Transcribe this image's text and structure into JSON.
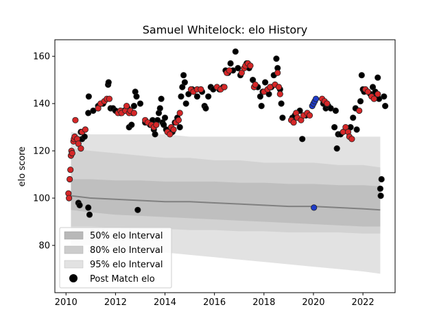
{
  "chart_data": {
    "type": "scatter",
    "title": "Samuel Whitelock: elo History",
    "xlabel": "",
    "ylabel": "elo score",
    "xlim": [
      2009.55,
      2023.3
    ],
    "ylim": [
      60,
      167
    ],
    "xticks": [
      2010,
      2012,
      2014,
      2016,
      2018,
      2020,
      2022
    ],
    "yticks": [
      80,
      100,
      120,
      140,
      160
    ],
    "legend_position": "lower-left",
    "legend": [
      "50% elo Interval",
      "80% elo Interval",
      "95% elo Interval",
      "Post Match elo"
    ],
    "colors": {
      "band95": "#e2e2e2",
      "band80": "#cccccc",
      "band50": "#b8b8b8",
      "median": "#808080",
      "points_black": "#000000",
      "points_red": "#d62728",
      "points_blue": "#1f3cc8"
    },
    "bands": {
      "x": [
        2010.2,
        2011.0,
        2012.0,
        2013.0,
        2014.0,
        2015.0,
        2016.0,
        2017.0,
        2018.0,
        2019.0,
        2020.0,
        2021.0,
        2022.0,
        2022.7
      ],
      "median": [
        101,
        100,
        99.5,
        99,
        98.5,
        98.5,
        98,
        97.5,
        97,
        96.5,
        96.5,
        96,
        95.5,
        95
      ],
      "p50_low": [
        95,
        94,
        93,
        92.5,
        92,
        91.5,
        91,
        90.5,
        90,
        89.5,
        89,
        88.5,
        88,
        88
      ],
      "p50_high": [
        108,
        108,
        107.5,
        107.5,
        107,
        107,
        107,
        106.5,
        106.5,
        106,
        106,
        105.5,
        105.5,
        105
      ],
      "p80_low": [
        88,
        88,
        87.5,
        87,
        87,
        86.5,
        86.5,
        86,
        86,
        85.5,
        85.5,
        85.5,
        85,
        85
      ],
      "p80_high": [
        121,
        120,
        119,
        118,
        117,
        117,
        116,
        116,
        115,
        115,
        115,
        114,
        114,
        113
      ],
      "p95_low": [
        80,
        80,
        79,
        78,
        77,
        76,
        75,
        74,
        73,
        72,
        71,
        70,
        69,
        68
      ],
      "p95_high": [
        128,
        127,
        127,
        127,
        127,
        126,
        126,
        126,
        126,
        126,
        126,
        126,
        126,
        126
      ]
    },
    "series": [
      {
        "color_key": "points_black",
        "points": [
          [
            2010.5,
            98
          ],
          [
            2010.55,
            97
          ],
          [
            2010.6,
            128
          ],
          [
            2010.65,
            125
          ],
          [
            2010.75,
            126
          ],
          [
            2010.9,
            96
          ],
          [
            2010.95,
            93
          ],
          [
            2010.9,
            136
          ],
          [
            2010.92,
            143
          ],
          [
            2011.1,
            137
          ],
          [
            2011.3,
            139
          ],
          [
            2011.5,
            140
          ],
          [
            2011.7,
            148
          ],
          [
            2011.72,
            149
          ],
          [
            2011.8,
            138
          ],
          [
            2011.9,
            138
          ],
          [
            2012.0,
            137
          ],
          [
            2012.2,
            136
          ],
          [
            2012.35,
            137
          ],
          [
            2012.5,
            138
          ],
          [
            2012.55,
            130
          ],
          [
            2012.65,
            131
          ],
          [
            2012.7,
            136
          ],
          [
            2012.75,
            139
          ],
          [
            2012.8,
            145
          ],
          [
            2012.85,
            143
          ],
          [
            2012.9,
            95
          ],
          [
            2013.0,
            140
          ],
          [
            2013.2,
            132
          ],
          [
            2013.4,
            131
          ],
          [
            2013.5,
            133
          ],
          [
            2013.55,
            129
          ],
          [
            2013.6,
            127
          ],
          [
            2013.7,
            133
          ],
          [
            2013.75,
            136
          ],
          [
            2013.8,
            138
          ],
          [
            2013.85,
            142
          ],
          [
            2013.9,
            132
          ],
          [
            2013.95,
            131
          ],
          [
            2014.0,
            134
          ],
          [
            2014.05,
            129
          ],
          [
            2014.3,
            128
          ],
          [
            2014.4,
            132
          ],
          [
            2014.5,
            134
          ],
          [
            2014.6,
            130
          ],
          [
            2014.65,
            143
          ],
          [
            2014.7,
            147
          ],
          [
            2014.75,
            152
          ],
          [
            2014.8,
            149
          ],
          [
            2014.85,
            140
          ],
          [
            2014.95,
            144
          ],
          [
            2015.1,
            146
          ],
          [
            2015.3,
            143
          ],
          [
            2015.5,
            145
          ],
          [
            2015.6,
            139
          ],
          [
            2015.65,
            138
          ],
          [
            2015.75,
            143
          ],
          [
            2015.85,
            147
          ],
          [
            2015.95,
            146
          ],
          [
            2016.2,
            146
          ],
          [
            2016.35,
            147
          ],
          [
            2016.45,
            154
          ],
          [
            2016.55,
            153
          ],
          [
            2016.65,
            157
          ],
          [
            2016.75,
            154
          ],
          [
            2016.85,
            162
          ],
          [
            2016.95,
            155
          ],
          [
            2017.05,
            152
          ],
          [
            2017.3,
            157
          ],
          [
            2017.4,
            155
          ],
          [
            2017.55,
            150
          ],
          [
            2017.75,
            147
          ],
          [
            2017.85,
            143
          ],
          [
            2017.9,
            139
          ],
          [
            2017.95,
            145
          ],
          [
            2018.05,
            149
          ],
          [
            2018.2,
            144
          ],
          [
            2018.3,
            147
          ],
          [
            2018.4,
            152
          ],
          [
            2018.5,
            159
          ],
          [
            2018.55,
            155
          ],
          [
            2018.65,
            146
          ],
          [
            2018.7,
            140
          ],
          [
            2018.75,
            134
          ],
          [
            2019.15,
            134
          ],
          [
            2019.25,
            135
          ],
          [
            2019.45,
            137
          ],
          [
            2019.55,
            125
          ],
          [
            2019.7,
            135
          ],
          [
            2020.4,
            140
          ],
          [
            2020.5,
            138
          ],
          [
            2020.6,
            139
          ],
          [
            2020.7,
            138
          ],
          [
            2020.85,
            130
          ],
          [
            2020.9,
            137
          ],
          [
            2020.95,
            121
          ],
          [
            2021.0,
            127
          ],
          [
            2021.1,
            127
          ],
          [
            2021.5,
            130
          ],
          [
            2021.6,
            134
          ],
          [
            2021.7,
            138
          ],
          [
            2021.75,
            129
          ],
          [
            2021.9,
            141
          ],
          [
            2021.95,
            152
          ],
          [
            2022.0,
            146
          ],
          [
            2022.05,
            145
          ],
          [
            2022.3,
            144
          ],
          [
            2022.4,
            147
          ],
          [
            2022.5,
            145
          ],
          [
            2022.55,
            143
          ],
          [
            2022.6,
            151
          ],
          [
            2022.65,
            142
          ],
          [
            2022.7,
            104
          ],
          [
            2022.72,
            101
          ],
          [
            2022.75,
            108
          ],
          [
            2022.85,
            143
          ],
          [
            2022.9,
            139
          ]
        ]
      },
      {
        "color_key": "points_red",
        "points": [
          [
            2010.1,
            102
          ],
          [
            2010.12,
            100
          ],
          [
            2010.15,
            108
          ],
          [
            2010.18,
            112
          ],
          [
            2010.2,
            118
          ],
          [
            2010.22,
            120
          ],
          [
            2010.25,
            119
          ],
          [
            2010.3,
            124
          ],
          [
            2010.32,
            125
          ],
          [
            2010.35,
            126
          ],
          [
            2010.38,
            133
          ],
          [
            2010.45,
            125
          ],
          [
            2010.5,
            123
          ],
          [
            2010.6,
            121
          ],
          [
            2010.65,
            128
          ],
          [
            2010.78,
            129
          ],
          [
            2011.3,
            138
          ],
          [
            2011.4,
            140
          ],
          [
            2011.55,
            141
          ],
          [
            2011.65,
            142
          ],
          [
            2011.75,
            142
          ],
          [
            2012.1,
            136
          ],
          [
            2012.2,
            137
          ],
          [
            2012.25,
            136
          ],
          [
            2012.4,
            137
          ],
          [
            2012.45,
            139
          ],
          [
            2012.55,
            136
          ],
          [
            2012.6,
            137
          ],
          [
            2012.75,
            136
          ],
          [
            2013.2,
            133
          ],
          [
            2013.3,
            132
          ],
          [
            2013.45,
            131
          ],
          [
            2013.55,
            130
          ],
          [
            2013.65,
            131
          ],
          [
            2014.1,
            128
          ],
          [
            2014.2,
            127
          ],
          [
            2014.25,
            130
          ],
          [
            2014.35,
            129
          ],
          [
            2014.45,
            132
          ],
          [
            2014.55,
            133
          ],
          [
            2014.6,
            136
          ],
          [
            2015.05,
            146
          ],
          [
            2015.15,
            145
          ],
          [
            2015.3,
            146
          ],
          [
            2015.45,
            146
          ],
          [
            2016.1,
            147
          ],
          [
            2016.25,
            146
          ],
          [
            2016.4,
            147
          ],
          [
            2016.5,
            153
          ],
          [
            2016.6,
            154
          ],
          [
            2017.1,
            153
          ],
          [
            2017.2,
            155
          ],
          [
            2017.25,
            156
          ],
          [
            2017.35,
            157
          ],
          [
            2017.45,
            156
          ],
          [
            2017.6,
            147
          ],
          [
            2017.65,
            148
          ],
          [
            2018.0,
            145
          ],
          [
            2018.15,
            146
          ],
          [
            2018.25,
            147
          ],
          [
            2018.45,
            148
          ],
          [
            2018.55,
            153
          ],
          [
            2018.6,
            147
          ],
          [
            2018.65,
            144
          ],
          [
            2019.1,
            133
          ],
          [
            2019.2,
            132
          ],
          [
            2019.3,
            136
          ],
          [
            2019.35,
            134
          ],
          [
            2019.5,
            133
          ],
          [
            2019.6,
            135
          ],
          [
            2019.75,
            136
          ],
          [
            2019.85,
            135
          ],
          [
            2020.35,
            142
          ],
          [
            2020.45,
            141
          ],
          [
            2020.55,
            140
          ],
          [
            2021.2,
            128
          ],
          [
            2021.3,
            130
          ],
          [
            2021.4,
            128
          ],
          [
            2021.45,
            126
          ],
          [
            2021.55,
            125
          ],
          [
            2021.85,
            137
          ],
          [
            2022.1,
            146
          ],
          [
            2022.2,
            145
          ],
          [
            2022.35,
            143
          ],
          [
            2022.45,
            142
          ],
          [
            2022.6,
            144
          ]
        ]
      },
      {
        "color_key": "points_blue",
        "points": [
          [
            2019.95,
            139
          ],
          [
            2020.0,
            140
          ],
          [
            2020.05,
            141
          ],
          [
            2020.1,
            142
          ],
          [
            2020.02,
            96
          ]
        ]
      }
    ]
  }
}
